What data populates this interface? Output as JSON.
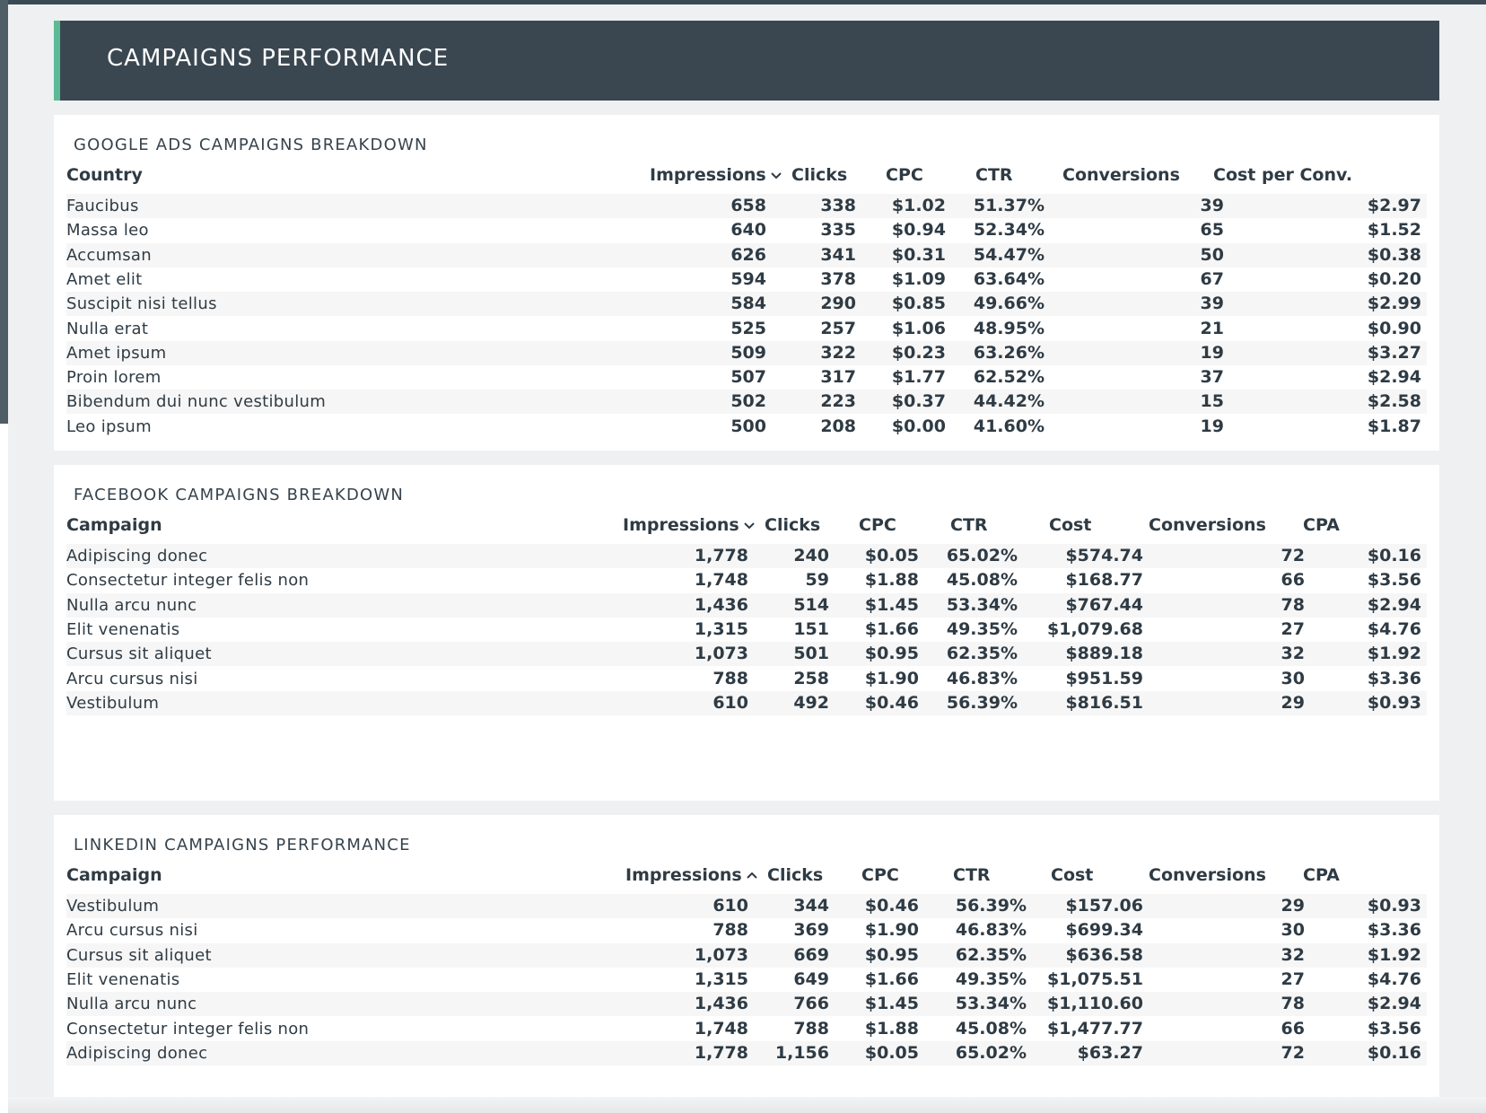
{
  "header": {
    "title": "CAMPAIGNS PERFORMANCE",
    "accent_color": "#5dba96",
    "background_color": "#3a4751"
  },
  "google": {
    "title": "GOOGLE ADS CAMPAIGNS BREAKDOWN",
    "columns": [
      "Country",
      "Impressions",
      "Clicks",
      "CPC",
      "CTR",
      "Conversions",
      "Cost per Conv."
    ],
    "sort_icon": "chevron-down-icon",
    "rows": [
      [
        "Faucibus",
        "658",
        "338",
        "$1.02",
        "51.37%",
        "39",
        "$2.97"
      ],
      [
        "Massa leo",
        "640",
        "335",
        "$0.94",
        "52.34%",
        "65",
        "$1.52"
      ],
      [
        "Accumsan",
        "626",
        "341",
        "$0.31",
        "54.47%",
        "50",
        "$0.38"
      ],
      [
        "Amet elit",
        "594",
        "378",
        "$1.09",
        "63.64%",
        "67",
        "$0.20"
      ],
      [
        "Suscipit nisi tellus",
        "584",
        "290",
        "$0.85",
        "49.66%",
        "39",
        "$2.99"
      ],
      [
        "Nulla erat",
        "525",
        "257",
        "$1.06",
        "48.95%",
        "21",
        "$0.90"
      ],
      [
        "Amet ipsum",
        "509",
        "322",
        "$0.23",
        "63.26%",
        "19",
        "$3.27"
      ],
      [
        "Proin lorem",
        "507",
        "317",
        "$1.77",
        "62.52%",
        "37",
        "$2.94"
      ],
      [
        "Bibendum dui nunc vestibulum",
        "502",
        "223",
        "$0.37",
        "44.42%",
        "15",
        "$2.58"
      ],
      [
        "Leo ipsum",
        "500",
        "208",
        "$0.00",
        "41.60%",
        "19",
        "$1.87"
      ]
    ]
  },
  "facebook": {
    "title": "FACEBOOK CAMPAIGNS BREAKDOWN",
    "columns": [
      "Campaign",
      "Impressions",
      "Clicks",
      "CPC",
      "CTR",
      "Cost",
      "Conversions",
      "CPA"
    ],
    "sort_icon": "chevron-down-icon",
    "rows": [
      [
        "Adipiscing donec",
        "1,778",
        "240",
        "$0.05",
        "65.02%",
        "$574.74",
        "72",
        "$0.16"
      ],
      [
        "Consectetur integer felis non",
        "1,748",
        "59",
        "$1.88",
        "45.08%",
        "$168.77",
        "66",
        "$3.56"
      ],
      [
        "Nulla arcu nunc",
        "1,436",
        "514",
        "$1.45",
        "53.34%",
        "$767.44",
        "78",
        "$2.94"
      ],
      [
        "Elit venenatis",
        "1,315",
        "151",
        "$1.66",
        "49.35%",
        "$1,079.68",
        "27",
        "$4.76"
      ],
      [
        "Cursus sit aliquet",
        "1,073",
        "501",
        "$0.95",
        "62.35%",
        "$889.18",
        "32",
        "$1.92"
      ],
      [
        "Arcu cursus nisi",
        "788",
        "258",
        "$1.90",
        "46.83%",
        "$951.59",
        "30",
        "$3.36"
      ],
      [
        "Vestibulum",
        "610",
        "492",
        "$0.46",
        "56.39%",
        "$816.51",
        "29",
        "$0.93"
      ]
    ]
  },
  "linkedin": {
    "title": "LINKEDIN CAMPAIGNS PERFORMANCE",
    "columns": [
      "Campaign",
      "Impressions",
      "Clicks",
      "CPC",
      "CTR",
      "Cost",
      "Conversions",
      "CPA"
    ],
    "sort_icon": "chevron-up-icon",
    "rows": [
      [
        "Vestibulum",
        "610",
        "344",
        "$0.46",
        "56.39%",
        "$157.06",
        "29",
        "$0.93"
      ],
      [
        "Arcu cursus nisi",
        "788",
        "369",
        "$1.90",
        "46.83%",
        "$699.34",
        "30",
        "$3.36"
      ],
      [
        "Cursus sit aliquet",
        "1,073",
        "669",
        "$0.95",
        "62.35%",
        "$636.58",
        "32",
        "$1.92"
      ],
      [
        "Elit venenatis",
        "1,315",
        "649",
        "$1.66",
        "49.35%",
        "$1,075.51",
        "27",
        "$4.76"
      ],
      [
        "Nulla arcu nunc",
        "1,436",
        "766",
        "$1.45",
        "53.34%",
        "$1,110.60",
        "78",
        "$2.94"
      ],
      [
        "Consectetur integer felis non",
        "1,748",
        "788",
        "$1.88",
        "45.08%",
        "$1,477.77",
        "66",
        "$3.56"
      ],
      [
        "Adipiscing donec",
        "1,778",
        "1,156",
        "$0.05",
        "65.02%",
        "$63.27",
        "72",
        "$0.16"
      ]
    ]
  }
}
